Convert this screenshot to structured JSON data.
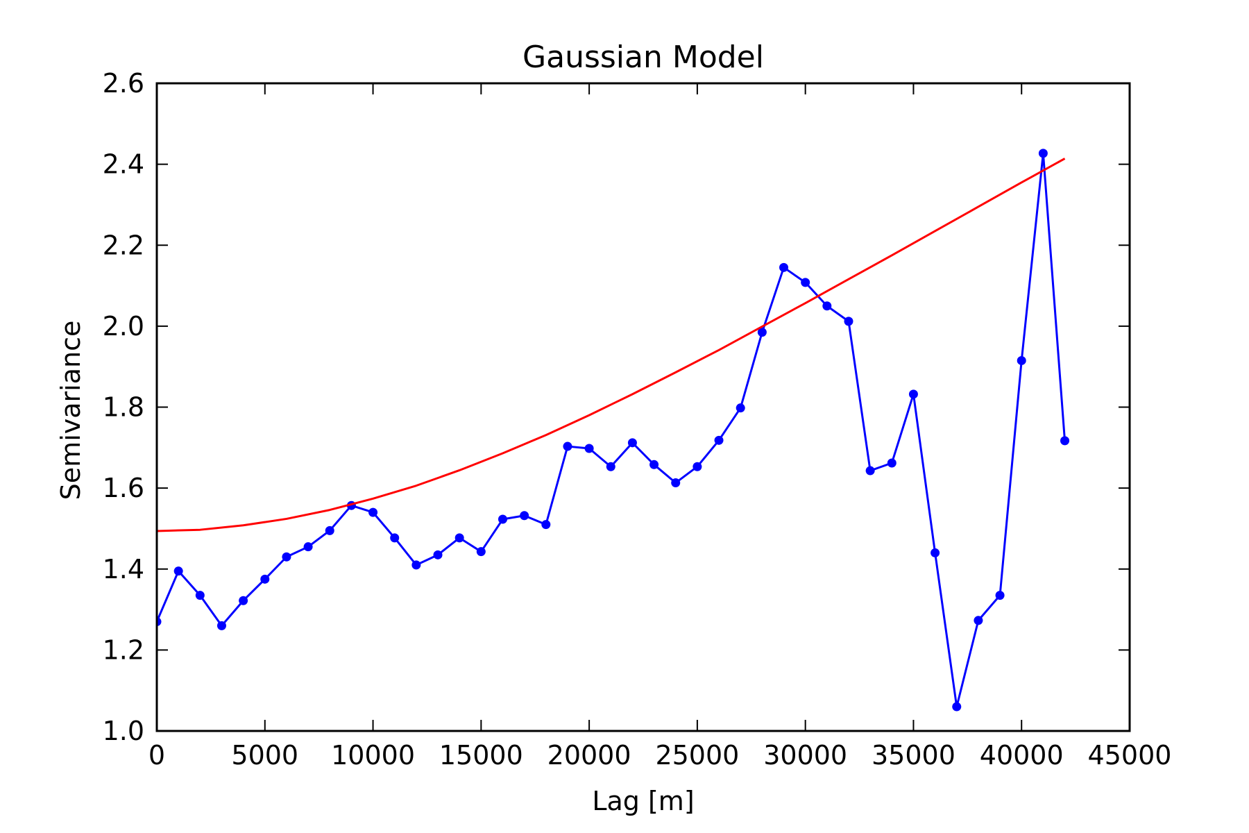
{
  "chart_data": {
    "type": "line",
    "title": "Gaussian Model",
    "xlabel": "Lag [m]",
    "ylabel": "Semivariance",
    "xlim": [
      0,
      45000
    ],
    "ylim": [
      1.0,
      2.6
    ],
    "xticks": [
      0,
      5000,
      10000,
      15000,
      20000,
      25000,
      30000,
      35000,
      40000,
      45000
    ],
    "xtick_labels": [
      "0",
      "5000",
      "10000",
      "15000",
      "20000",
      "25000",
      "30000",
      "35000",
      "40000",
      "45000"
    ],
    "yticks": [
      1.0,
      1.2,
      1.4,
      1.6,
      1.8,
      2.0,
      2.2,
      2.4,
      2.6
    ],
    "ytick_labels": [
      "1.0",
      "1.2",
      "1.4",
      "1.6",
      "1.8",
      "2.0",
      "2.2",
      "2.4",
      "2.6"
    ],
    "grid": false,
    "series": [
      {
        "style": "line-markers",
        "color": "#0000ff",
        "x": [
          0,
          1000,
          2000,
          3000,
          4000,
          5000,
          6000,
          7000,
          8000,
          9000,
          10000,
          11000,
          12000,
          13000,
          14000,
          15000,
          16000,
          17000,
          18000,
          19000,
          20000,
          21000,
          22000,
          23000,
          24000,
          25000,
          26000,
          27000,
          28000,
          29000,
          30000,
          31000,
          32000,
          33000,
          34000,
          35000,
          36000,
          37000,
          38000,
          39000,
          40000,
          41000,
          42000
        ],
        "y": [
          1.27,
          1.395,
          1.335,
          1.26,
          1.322,
          1.375,
          1.43,
          1.455,
          1.495,
          1.557,
          1.54,
          1.477,
          1.41,
          1.435,
          1.477,
          1.443,
          1.523,
          1.532,
          1.51,
          1.703,
          1.698,
          1.653,
          1.712,
          1.658,
          1.613,
          1.653,
          1.718,
          1.798,
          1.985,
          2.145,
          2.108,
          2.05,
          2.012,
          1.643,
          1.662,
          1.832,
          1.44,
          1.06,
          1.273,
          1.335,
          1.915,
          2.427,
          1.717
        ]
      },
      {
        "style": "line",
        "color": "#ff0000",
        "x": [
          0,
          2000,
          4000,
          6000,
          8000,
          10000,
          12000,
          14000,
          16000,
          18000,
          20000,
          22000,
          24000,
          26000,
          28000,
          30000,
          32000,
          34000,
          36000,
          38000,
          40000,
          42000
        ],
        "y": [
          1.494,
          1.497,
          1.508,
          1.524,
          1.546,
          1.574,
          1.606,
          1.644,
          1.686,
          1.731,
          1.78,
          1.832,
          1.886,
          1.941,
          1.999,
          2.057,
          2.116,
          2.175,
          2.235,
          2.295,
          2.355,
          2.414
        ]
      }
    ]
  }
}
